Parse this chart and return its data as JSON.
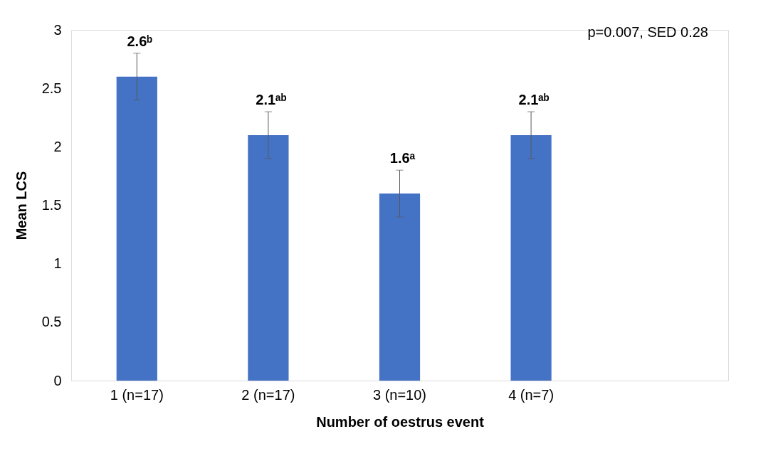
{
  "chart_data": {
    "type": "bar",
    "categories": [
      "1 (n=17)",
      "2 (n=17)",
      "3 (n=10)",
      "4 (n=7)",
      null
    ],
    "values": [
      2.6,
      2.1,
      1.6,
      2.1,
      null
    ],
    "errors": [
      0.2,
      0.2,
      0.2,
      0.2,
      null
    ],
    "color": "#4472c4",
    "value_labels": [
      "2.6ᵇ",
      "2.1ᵃᵇ",
      "1.6ᵃ",
      "2.1ᵃᵇ",
      null
    ],
    "xlabel": "Number of oestrus event",
    "ylabel": "Mean LCS",
    "ylim": [
      0,
      3
    ],
    "yticks": [
      0,
      0.5,
      1,
      1.5,
      2,
      2.5,
      3
    ],
    "annotations": [
      "p=0.007, SED 0.28"
    ],
    "grid": false
  }
}
